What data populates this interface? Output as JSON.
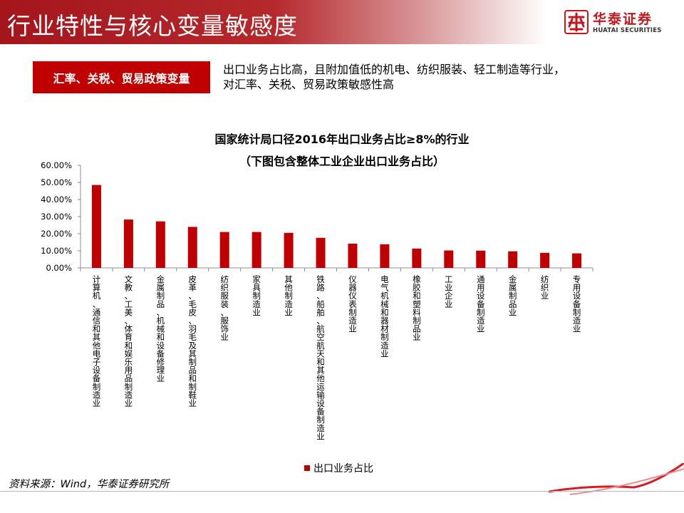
{
  "header": {
    "title": "行业特性与核心变量敏感度"
  },
  "logo": {
    "name_cn": "华泰证券",
    "name_en": "HUATAI SECURITIES",
    "icon": "huatai-logo-icon"
  },
  "tag": {
    "label": "汇率、关税、贸易政策变量"
  },
  "description": {
    "line1": "出口业务占比高，且附加值低的机电、纺织服装、轻工制造等行业，",
    "line2": "对汇率、关税、贸易政策敏感性高"
  },
  "chart_data": {
    "type": "bar",
    "title": "国家统计局口径2016年出口业务占比≥8%的行业",
    "subtitle": "（下图包含整体工业企业出口业务占比）",
    "categories": [
      "计算机、通信和其他电子设备制造业",
      "文教、工美、体育和娱乐用品制造业",
      "金属制品、机械和设备修理业",
      "皮革、毛皮、羽毛及其制品和制鞋业",
      "纺织服装、服饰业",
      "家具制造业",
      "其他制造业",
      "铁路、船舶、航空航天和其他运输设备制造业",
      "仪器仪表制造业",
      "电气机械和器材制造业",
      "橡胶和塑料制品业",
      "工业企业",
      "通用设备制造业",
      "金属制品业",
      "纺织业",
      "专用设备制造业"
    ],
    "series": [
      {
        "name": "出口业务占比",
        "values": [
          48.5,
          28.3,
          27.2,
          24.0,
          21.0,
          21.0,
          20.5,
          17.6,
          14.2,
          13.8,
          11.3,
          10.2,
          10.1,
          9.7,
          8.8,
          8.5
        ]
      }
    ],
    "yticks": [
      "0.00%",
      "10.00%",
      "20.00%",
      "30.00%",
      "40.00%",
      "50.00%",
      "60.00%"
    ],
    "ylim": [
      0,
      60
    ],
    "grid": false,
    "legend_position": "bottom",
    "bar_color": "#c00000"
  },
  "footer": {
    "source": "资料来源：Wind，华泰证券研究所"
  },
  "colors": {
    "brand": "#c4161c",
    "bar": "#c00000"
  }
}
